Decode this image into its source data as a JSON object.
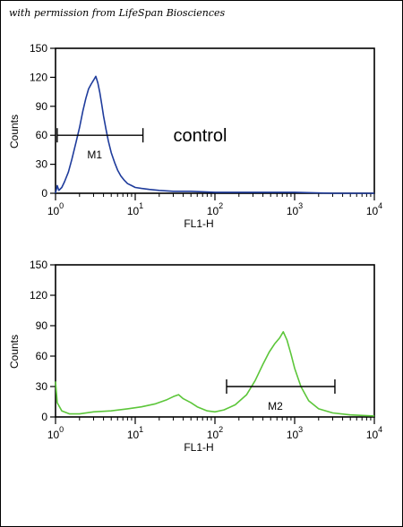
{
  "credit": "with permission from LifeSpan Biosciences",
  "chart_data": [
    {
      "type": "line",
      "xlabel": "FL1-H",
      "ylabel": "Counts",
      "xscale": "log",
      "xlim": [
        1,
        10000
      ],
      "ylim": [
        0,
        150
      ],
      "y_ticks": [
        0,
        30,
        60,
        90,
        120,
        150
      ],
      "x_ticks": [
        {
          "base": "10",
          "exp": "0"
        },
        {
          "base": "10",
          "exp": "1"
        },
        {
          "base": "10",
          "exp": "2"
        },
        {
          "base": "10",
          "exp": "3"
        },
        {
          "base": "10",
          "exp": "4"
        }
      ],
      "line_color": "#1f3c9c",
      "annotation": "control",
      "gate": {
        "label": "M1",
        "x_start": 1.05,
        "x_end": 12.5,
        "y": 60
      },
      "series": [
        {
          "x": [
            1.0,
            1.05,
            1.1,
            1.2,
            1.3,
            1.45,
            1.6,
            1.8,
            2.0,
            2.2,
            2.4,
            2.6,
            2.8,
            3.0,
            3.2,
            3.4,
            3.6,
            3.8,
            4.0,
            4.3,
            4.6,
            5.0,
            5.5,
            6.0,
            6.6,
            7.2,
            8.0,
            9.0,
            10.0,
            12.0,
            15.0,
            20.0,
            30.0,
            50.0,
            100.0,
            200.0,
            500.0,
            1000.0,
            3000.0,
            10000.0
          ],
          "y": [
            0,
            8,
            3,
            6,
            12,
            22,
            35,
            52,
            68,
            85,
            98,
            108,
            113,
            117,
            121,
            114,
            104,
            92,
            80,
            66,
            54,
            42,
            32,
            24,
            18,
            14,
            10,
            8,
            6,
            5,
            4,
            3,
            2,
            2,
            1,
            1,
            1,
            1,
            0,
            0
          ]
        }
      ]
    },
    {
      "type": "line",
      "xlabel": "FL1-H",
      "ylabel": "Counts",
      "xscale": "log",
      "xlim": [
        1,
        10000
      ],
      "ylim": [
        0,
        150
      ],
      "y_ticks": [
        0,
        30,
        60,
        90,
        120,
        150
      ],
      "x_ticks": [
        {
          "base": "10",
          "exp": "0"
        },
        {
          "base": "10",
          "exp": "1"
        },
        {
          "base": "10",
          "exp": "2"
        },
        {
          "base": "10",
          "exp": "3"
        },
        {
          "base": "10",
          "exp": "4"
        }
      ],
      "line_color": "#5cc63a",
      "gate": {
        "label": "M2",
        "x_start": 140,
        "x_end": 3200,
        "y": 30
      },
      "series": [
        {
          "x": [
            1.0,
            1.05,
            1.2,
            1.5,
            2.0,
            3.0,
            5.0,
            8.0,
            12.0,
            18.0,
            25.0,
            30.0,
            35.0,
            40.0,
            50.0,
            60.0,
            80.0,
            100.0,
            130.0,
            180.0,
            250.0,
            320.0,
            400.0,
            480.0,
            560.0,
            650.0,
            720.0,
            800.0,
            900.0,
            1000.0,
            1200.0,
            1500.0,
            2000.0,
            3000.0,
            5000.0,
            10000.0
          ],
          "y": [
            35,
            14,
            6,
            3,
            3,
            5,
            6,
            8,
            10,
            13,
            17,
            20,
            22,
            18,
            14,
            10,
            6,
            5,
            7,
            12,
            22,
            36,
            52,
            64,
            72,
            78,
            84,
            76,
            62,
            48,
            30,
            16,
            8,
            4,
            2,
            1
          ]
        }
      ]
    }
  ]
}
